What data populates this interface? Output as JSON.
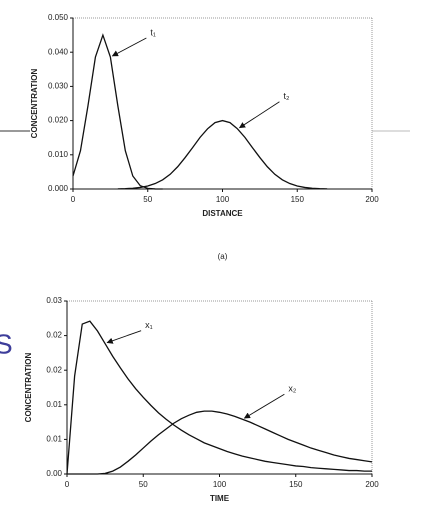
{
  "background_text": "S",
  "chart_data": [
    {
      "type": "line",
      "caption": "(a)",
      "xlabel": "DISTANCE",
      "ylabel": "CONCENTRATION",
      "x": [
        0,
        5,
        10,
        15,
        20,
        25,
        30,
        35,
        40,
        45,
        50,
        55,
        60,
        65,
        70,
        75,
        80,
        85,
        90,
        95,
        100,
        105,
        110,
        115,
        120,
        125,
        130,
        135,
        140,
        145,
        150,
        155,
        160,
        165,
        170,
        175,
        180,
        185,
        190,
        195,
        200
      ],
      "series": [
        {
          "name": "t₁",
          "color": "#111111",
          "values": [
            0.0038,
            0.0112,
            0.0243,
            0.0386,
            0.045,
            0.0386,
            0.0243,
            0.0112,
            0.0038,
            0.00095,
            0.00017,
            2e-05,
            0.0,
            null,
            null,
            null,
            null,
            null,
            null,
            null,
            null,
            null,
            null,
            null,
            null,
            null,
            null,
            null,
            null,
            null,
            null,
            null,
            null,
            null,
            null,
            null,
            null,
            null,
            null,
            null,
            null
          ]
        },
        {
          "name": "t₂",
          "color": "#111111",
          "values": [
            null,
            null,
            null,
            null,
            null,
            null,
            4e-05,
            0.0001,
            0.00022,
            0.00046,
            0.00088,
            0.0016,
            0.0027,
            0.0043,
            0.0065,
            0.0092,
            0.0121,
            0.0151,
            0.0176,
            0.0194,
            0.02,
            0.0194,
            0.0176,
            0.0151,
            0.0121,
            0.0092,
            0.0065,
            0.0043,
            0.0027,
            0.0016,
            0.00088,
            0.00046,
            0.00022,
            0.0001,
            4e-05,
            null,
            null,
            null,
            null,
            null,
            null
          ]
        }
      ],
      "xlim": [
        0,
        200
      ],
      "xticks": [
        0,
        50,
        100,
        150,
        200
      ],
      "ylim": [
        0,
        0.05
      ],
      "yticks": [
        {
          "value": 0,
          "label": "0.000"
        },
        {
          "value": 0.01,
          "label": "0.010"
        },
        {
          "value": 0.02,
          "label": "0.020"
        },
        {
          "value": 0.03,
          "label": "0.030"
        },
        {
          "value": 0.04,
          "label": "0.040"
        },
        {
          "value": 0.05,
          "label": "0.050"
        }
      ]
    },
    {
      "type": "line",
      "xlabel": "TIME",
      "ylabel": "CONCENTRATION",
      "x": [
        0,
        5,
        10,
        15,
        20,
        25,
        30,
        35,
        40,
        45,
        50,
        55,
        60,
        65,
        70,
        75,
        80,
        85,
        90,
        95,
        100,
        105,
        110,
        115,
        120,
        125,
        130,
        135,
        140,
        145,
        150,
        155,
        160,
        165,
        170,
        175,
        180,
        185,
        190,
        195,
        200
      ],
      "series": [
        {
          "name": "x₁",
          "color": "#111111",
          "values": [
            0,
            0.017,
            0.026,
            0.0265,
            0.0248,
            0.0226,
            0.0204,
            0.0184,
            0.0165,
            0.0148,
            0.0133,
            0.0119,
            0.0106,
            0.0095,
            0.0085,
            0.0076,
            0.0068,
            0.0061,
            0.0054,
            0.0049,
            0.0044,
            0.0039,
            0.0035,
            0.0031,
            0.0028,
            0.0025,
            0.0022,
            0.002,
            0.0018,
            0.0016,
            0.0014,
            0.0013,
            0.0011,
            0.001,
            0.0009,
            0.0008,
            0.0007,
            0.0006,
            0.0006,
            0.0005,
            0.0005
          ]
        },
        {
          "name": "x₂",
          "color": "#111111",
          "values": [
            0,
            0,
            0,
            0,
            0,
            0.0001,
            0.0005,
            0.0012,
            0.0022,
            0.0033,
            0.0045,
            0.0057,
            0.0068,
            0.0078,
            0.0088,
            0.0096,
            0.0102,
            0.0107,
            0.0109,
            0.0109,
            0.0107,
            0.0104,
            0.01,
            0.0095,
            0.009,
            0.0084,
            0.0078,
            0.0072,
            0.0066,
            0.006,
            0.0055,
            0.005,
            0.0045,
            0.0041,
            0.0037,
            0.0033,
            0.003,
            0.0027,
            0.0025,
            0.0023,
            0.0021
          ]
        }
      ],
      "xlim": [
        0,
        200
      ],
      "xticks": [
        0,
        50,
        100,
        150,
        200
      ],
      "ylim": [
        0,
        0.03
      ],
      "yticks": [
        {
          "value": 0,
          "label": "0.00"
        },
        {
          "value": 0.006,
          "label": "0.01"
        },
        {
          "value": 0.012,
          "label": "0.01"
        },
        {
          "value": 0.018,
          "label": "0.02"
        },
        {
          "value": 0.024,
          "label": "0.02"
        },
        {
          "value": 0.03,
          "label": "0.03"
        }
      ]
    }
  ]
}
